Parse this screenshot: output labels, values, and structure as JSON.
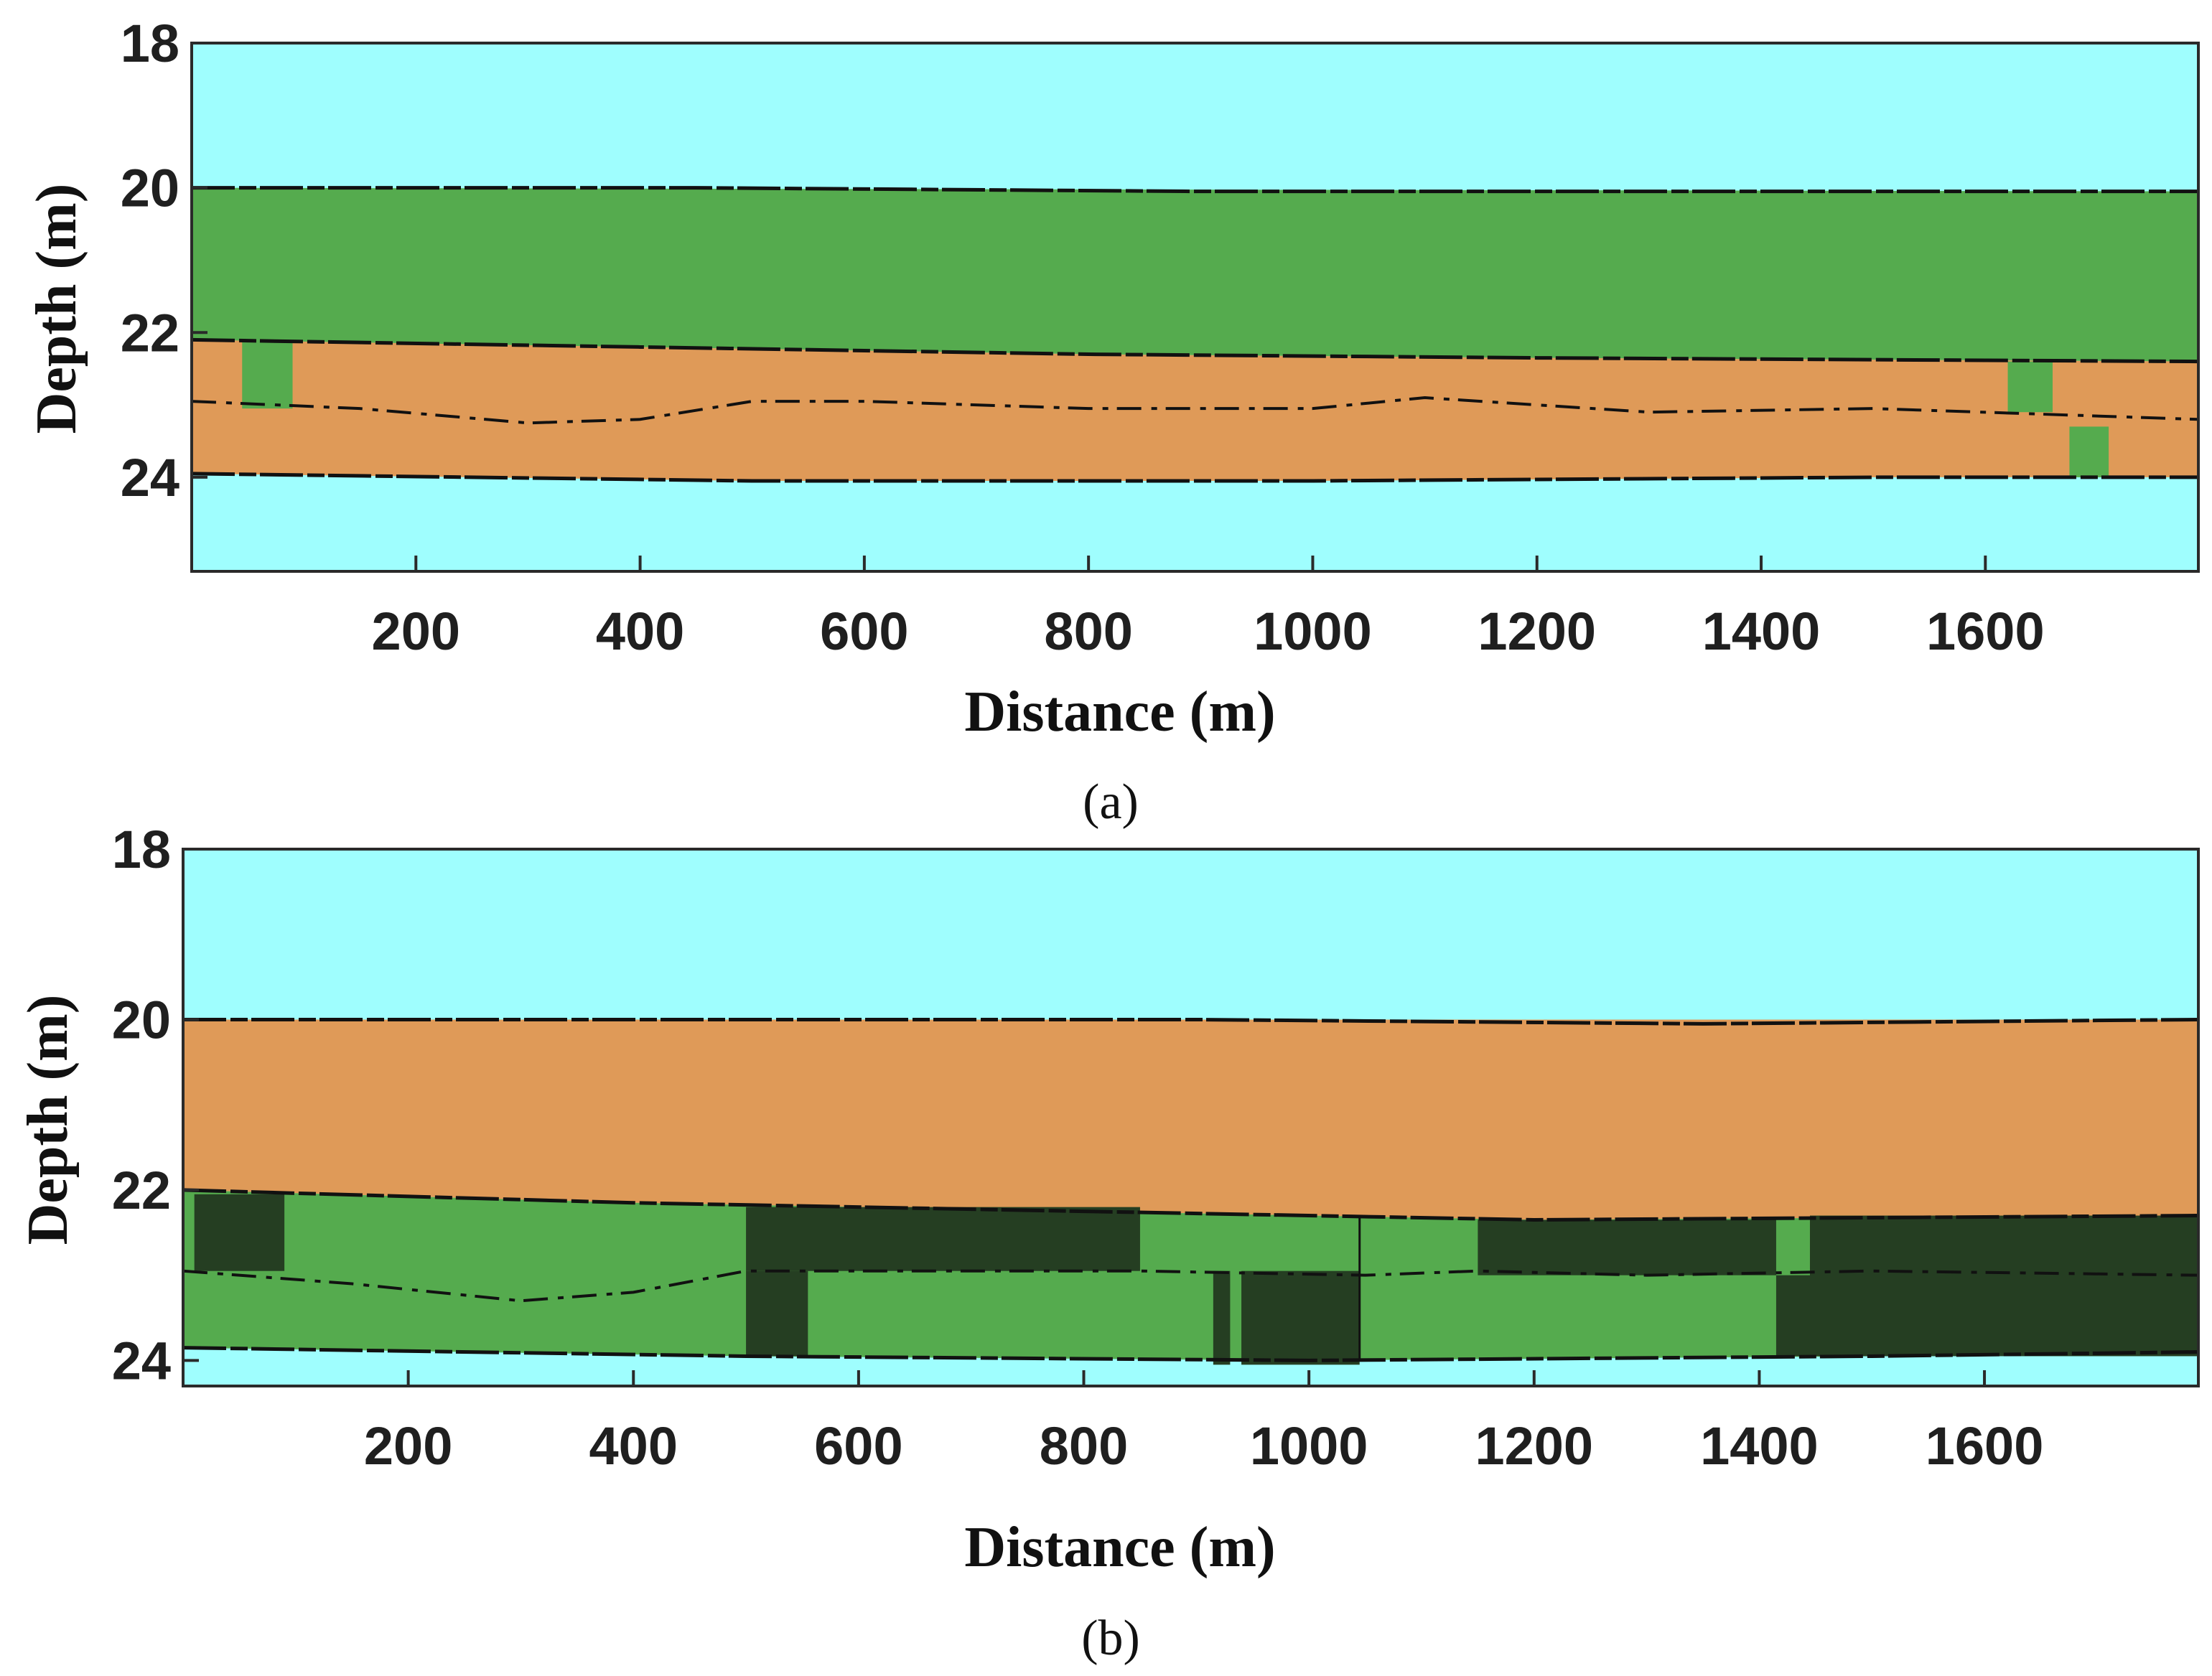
{
  "chart_data": [
    {
      "type": "heatmap",
      "panel": "a",
      "caption": "(a)",
      "xlabel": "Distance (m)",
      "ylabel": "Depth (m)",
      "xlim": [
        0,
        1790
      ],
      "ylim": [
        18,
        25.3
      ],
      "x_ticks": [
        "200",
        "400",
        "600",
        "800",
        "1000",
        "1200",
        "1400",
        "1600"
      ],
      "x_tick_values": [
        200,
        400,
        600,
        800,
        1000,
        1200,
        1400,
        1600
      ],
      "y_ticks": [
        "18",
        "20",
        "22",
        "24"
      ],
      "y_tick_values": [
        18,
        20,
        22,
        24
      ],
      "colors": {
        "water": "#9ffefe",
        "green": "#55ab4e",
        "orange": "#df9a58",
        "dark": "#253e22",
        "boundary": "#111111"
      },
      "background": "water",
      "layers": [
        {
          "material": "green",
          "x": [
            0,
            1790
          ],
          "top": [
            [
              0,
              20.0
            ],
            [
              1790,
              20.05
            ]
          ],
          "bottom": [
            [
              0,
              22.1
            ],
            [
              400,
              22.2
            ],
            [
              800,
              22.3
            ],
            [
              1200,
              22.35
            ],
            [
              1790,
              22.4
            ]
          ]
        },
        {
          "material": "orange",
          "x": [
            0,
            1790
          ],
          "top": [
            [
              0,
              22.1
            ],
            [
              400,
              22.2
            ],
            [
              800,
              22.3
            ],
            [
              1200,
              22.35
            ],
            [
              1790,
              22.4
            ]
          ],
          "bottom": [
            [
              0,
              23.95
            ],
            [
              500,
              24.05
            ],
            [
              1000,
              24.05
            ],
            [
              1500,
              24.0
            ],
            [
              1790,
              24.0
            ]
          ]
        }
      ],
      "patches": [
        {
          "material": "green",
          "x0": 45,
          "x1": 90,
          "y0": 22.1,
          "y1": 23.05
        },
        {
          "material": "green",
          "x0": 1620,
          "x1": 1660,
          "y0": 22.4,
          "y1": 23.1
        },
        {
          "material": "green",
          "x0": 1675,
          "x1": 1710,
          "y0": 23.3,
          "y1": 24.0
        }
      ],
      "boundaries": [
        [
          [
            0,
            20.0
          ],
          [
            450,
            20.0
          ],
          [
            900,
            20.05
          ],
          [
            1350,
            20.05
          ],
          [
            1790,
            20.05
          ]
        ],
        [
          [
            0,
            22.1
          ],
          [
            400,
            22.2
          ],
          [
            800,
            22.3
          ],
          [
            1200,
            22.35
          ],
          [
            1790,
            22.4
          ]
        ],
        [
          [
            0,
            23.95
          ],
          [
            500,
            24.05
          ],
          [
            1000,
            24.05
          ],
          [
            1500,
            24.0
          ],
          [
            1790,
            24.0
          ]
        ],
        [
          [
            0,
            22.95
          ],
          [
            150,
            23.05
          ],
          [
            300,
            23.25
          ],
          [
            400,
            23.2
          ],
          [
            500,
            22.95
          ],
          [
            600,
            22.95
          ],
          [
            800,
            23.05
          ],
          [
            1000,
            23.05
          ],
          [
            1100,
            22.9
          ],
          [
            1300,
            23.1
          ],
          [
            1500,
            23.05
          ],
          [
            1790,
            23.2
          ]
        ]
      ]
    },
    {
      "type": "heatmap",
      "panel": "b",
      "caption": "(b)",
      "xlabel": "Distance (m)",
      "ylabel": "Depth (m)",
      "xlim": [
        0,
        1790
      ],
      "ylim": [
        18,
        24.3
      ],
      "x_ticks": [
        "200",
        "400",
        "600",
        "800",
        "1000",
        "1200",
        "1400",
        "1600"
      ],
      "x_tick_values": [
        200,
        400,
        600,
        800,
        1000,
        1200,
        1400,
        1600
      ],
      "y_ticks": [
        "18",
        "20",
        "22",
        "24"
      ],
      "y_tick_values": [
        18,
        20,
        22,
        24
      ],
      "colors": {
        "water": "#9ffefe",
        "green": "#55ab4e",
        "orange": "#df9a58",
        "dark": "#253e22",
        "boundary": "#111111"
      },
      "background": "water",
      "layers": [
        {
          "material": "orange",
          "x": [
            0,
            1790
          ],
          "top": [
            [
              0,
              20.0
            ],
            [
              1790,
              20.0
            ]
          ],
          "bottom": [
            [
              0,
              22.0
            ],
            [
              400,
              22.15
            ],
            [
              800,
              22.25
            ],
            [
              1200,
              22.35
            ],
            [
              1790,
              22.3
            ]
          ]
        },
        {
          "material": "green",
          "x": [
            0,
            1790
          ],
          "top": [
            [
              0,
              22.0
            ],
            [
              400,
              22.15
            ],
            [
              800,
              22.25
            ],
            [
              1200,
              22.35
            ],
            [
              1790,
              22.3
            ]
          ],
          "bottom": [
            [
              0,
              23.85
            ],
            [
              500,
              23.95
            ],
            [
              1000,
              24.0
            ],
            [
              1500,
              23.95
            ],
            [
              1790,
              23.9
            ]
          ]
        }
      ],
      "patches": [
        {
          "material": "dark",
          "x0": 10,
          "x1": 90,
          "y0": 22.05,
          "y1": 22.95
        },
        {
          "material": "dark",
          "x0": 500,
          "x1": 850,
          "y0": 22.2,
          "y1": 22.95
        },
        {
          "material": "dark",
          "x0": 500,
          "x1": 555,
          "y0": 22.95,
          "y1": 23.95
        },
        {
          "material": "dark",
          "x0": 915,
          "x1": 930,
          "y0": 22.95,
          "y1": 24.05
        },
        {
          "material": "dark",
          "x0": 940,
          "x1": 1045,
          "y0": 22.95,
          "y1": 24.05
        },
        {
          "material": "dark",
          "x0": 1150,
          "x1": 1415,
          "y0": 22.35,
          "y1": 23.0
        },
        {
          "material": "dark",
          "x0": 1415,
          "x1": 1445,
          "y0": 23.0,
          "y1": 23.95
        },
        {
          "material": "dark",
          "x0": 1445,
          "x1": 1790,
          "y0": 22.3,
          "y1": 23.95
        }
      ],
      "boundaries": [
        [
          [
            0,
            20.0
          ],
          [
            450,
            20.0
          ],
          [
            900,
            20.0
          ],
          [
            1350,
            20.05
          ],
          [
            1790,
            20.0
          ]
        ],
        [
          [
            0,
            22.0
          ],
          [
            400,
            22.15
          ],
          [
            800,
            22.25
          ],
          [
            1200,
            22.35
          ],
          [
            1790,
            22.3
          ]
        ],
        [
          [
            0,
            23.85
          ],
          [
            500,
            23.95
          ],
          [
            1000,
            24.0
          ],
          [
            1500,
            23.95
          ],
          [
            1790,
            23.9
          ]
        ],
        [
          [
            0,
            22.95
          ],
          [
            150,
            23.1
          ],
          [
            300,
            23.3
          ],
          [
            400,
            23.2
          ],
          [
            500,
            22.95
          ],
          [
            850,
            22.95
          ],
          [
            1050,
            23.0
          ],
          [
            1150,
            22.95
          ],
          [
            1300,
            23.0
          ],
          [
            1500,
            22.95
          ],
          [
            1790,
            23.0
          ]
        ]
      ],
      "vertical_lines": [
        1045
      ]
    }
  ]
}
